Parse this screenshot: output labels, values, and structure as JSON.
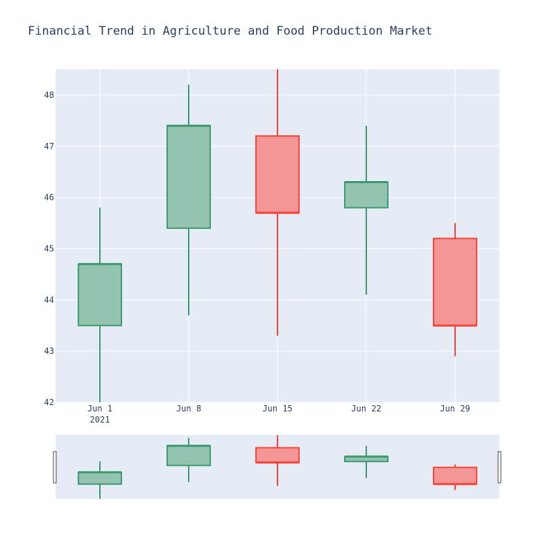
{
  "chart_data": {
    "type": "candlestick",
    "title": "Financial Trend in Agriculture and Food Production Market",
    "xlabel": "",
    "ylabel": "",
    "ylim": [
      42,
      48.5
    ],
    "yticks": [
      42,
      43,
      44,
      45,
      46,
      47,
      48
    ],
    "xticks": [
      {
        "label": "Jun 1",
        "sublabel": "2021"
      },
      {
        "label": "Jun 8",
        "sublabel": ""
      },
      {
        "label": "Jun 15",
        "sublabel": ""
      },
      {
        "label": "Jun 22",
        "sublabel": ""
      },
      {
        "label": "Jun 29",
        "sublabel": ""
      }
    ],
    "categories": [
      "2021-06-01",
      "2021-06-08",
      "2021-06-15",
      "2021-06-22",
      "2021-06-29"
    ],
    "candles": [
      {
        "date": "2021-06-01",
        "open": 43.5,
        "high": 45.8,
        "low": 42.0,
        "close": 44.7
      },
      {
        "date": "2021-06-08",
        "open": 45.4,
        "high": 48.2,
        "low": 43.7,
        "close": 47.4
      },
      {
        "date": "2021-06-15",
        "open": 47.2,
        "high": 48.5,
        "low": 43.3,
        "close": 45.7
      },
      {
        "date": "2021-06-22",
        "open": 45.8,
        "high": 47.4,
        "low": 44.1,
        "close": 46.3
      },
      {
        "date": "2021-06-29",
        "open": 45.2,
        "high": 45.5,
        "low": 42.9,
        "close": 43.5
      }
    ],
    "grid": true,
    "rangeslider": true,
    "colors": {
      "increasing_line": "#3d9970",
      "increasing_fill": "#93c4b0",
      "decreasing_line": "#ff4136",
      "decreasing_fill": "#f29696",
      "plot_bg": "#e5ecf6",
      "grid": "#ffffff",
      "text": "#2a3f5f"
    }
  }
}
